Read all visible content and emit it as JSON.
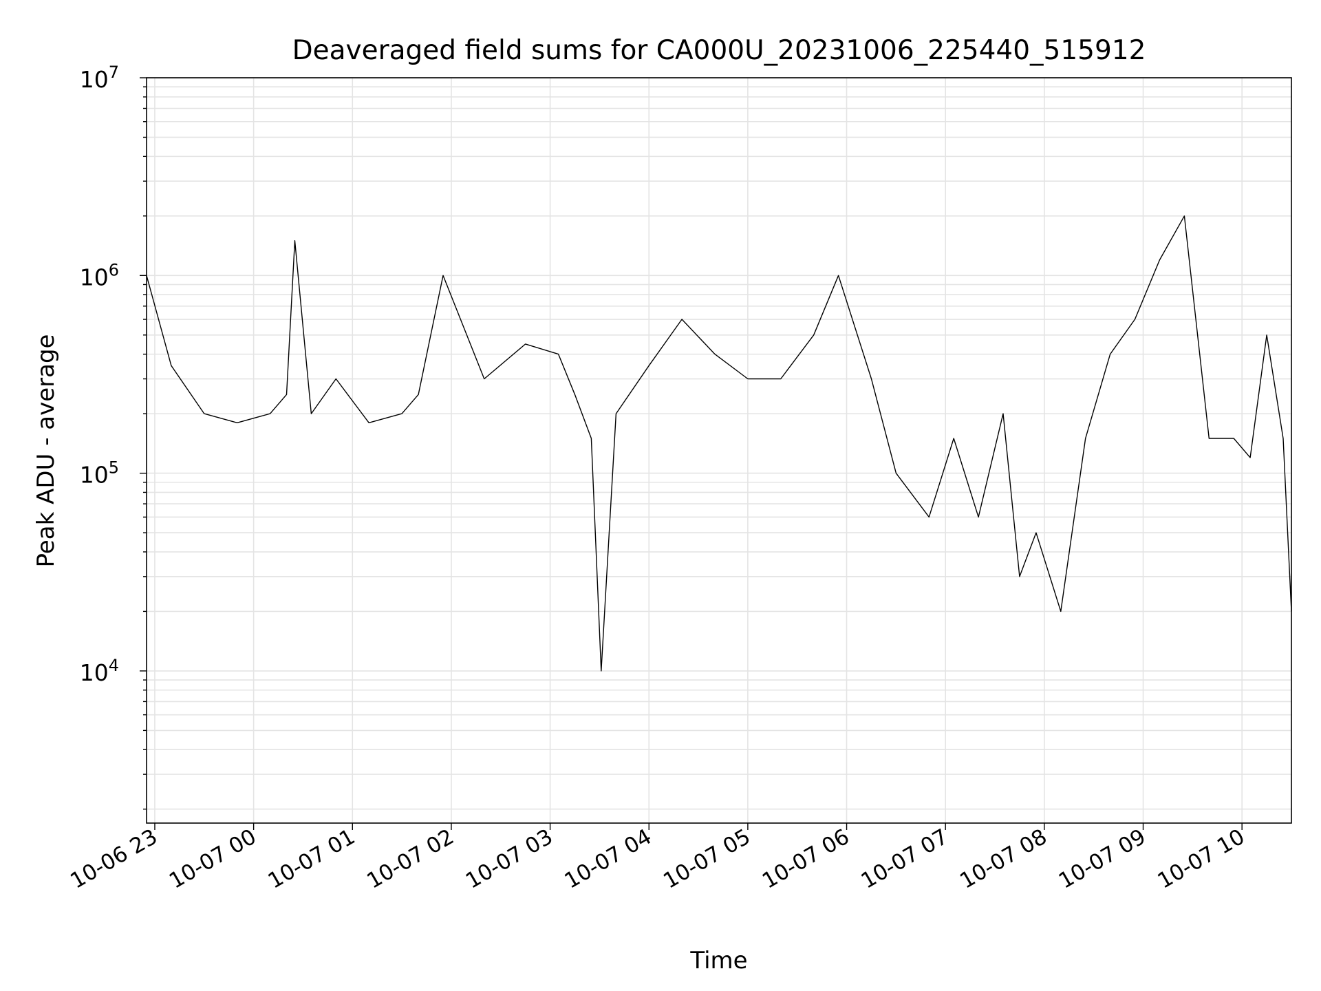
{
  "chart_data": {
    "type": "line",
    "title": "Deaveraged field sums for CA000U_20231006_225440_515912",
    "xlabel": "Time",
    "ylabel": "Peak ADU - average",
    "yscale": "log",
    "ylim": [
      1700,
      10000000
    ],
    "xlim": [
      "2023-10-06T22:55",
      "2023-10-07T10:30"
    ],
    "grid": true,
    "line_color": "#000000",
    "x_tick_labels": [
      "10-06 23",
      "10-07 00",
      "10-07 01",
      "10-07 02",
      "10-07 03",
      "10-07 04",
      "10-07 05",
      "10-07 06",
      "10-07 07",
      "10-07 08",
      "10-07 09",
      "10-07 10"
    ],
    "x_tick_times": [
      "2023-10-06T23:00",
      "2023-10-07T00:00",
      "2023-10-07T01:00",
      "2023-10-07T02:00",
      "2023-10-07T03:00",
      "2023-10-07T04:00",
      "2023-10-07T05:00",
      "2023-10-07T06:00",
      "2023-10-07T07:00",
      "2023-10-07T08:00",
      "2023-10-07T09:00",
      "2023-10-07T10:00"
    ],
    "y_tick_exponents": [
      4,
      5,
      6,
      7
    ],
    "series": [
      {
        "x": [
          "2023-10-06T22:55",
          "2023-10-06T23:10",
          "2023-10-06T23:30",
          "2023-10-06T23:50",
          "2023-10-07T00:10",
          "2023-10-07T00:20",
          "2023-10-07T00:25",
          "2023-10-07T00:35",
          "2023-10-07T00:50",
          "2023-10-07T01:10",
          "2023-10-07T01:30",
          "2023-10-07T01:40",
          "2023-10-07T01:55",
          "2023-10-07T02:20",
          "2023-10-07T02:45",
          "2023-10-07T03:05",
          "2023-10-07T03:15",
          "2023-10-07T03:25",
          "2023-10-07T03:31",
          "2023-10-07T03:40",
          "2023-10-07T04:00",
          "2023-10-07T04:20",
          "2023-10-07T04:40",
          "2023-10-07T05:00",
          "2023-10-07T05:20",
          "2023-10-07T05:40",
          "2023-10-07T05:55",
          "2023-10-07T06:15",
          "2023-10-07T06:30",
          "2023-10-07T06:50",
          "2023-10-07T07:05",
          "2023-10-07T07:20",
          "2023-10-07T07:35",
          "2023-10-07T07:45",
          "2023-10-07T07:55",
          "2023-10-07T08:10",
          "2023-10-07T08:25",
          "2023-10-07T08:40",
          "2023-10-07T08:55",
          "2023-10-07T09:10",
          "2023-10-07T09:25",
          "2023-10-07T09:40",
          "2023-10-07T09:55",
          "2023-10-07T10:05",
          "2023-10-07T10:15",
          "2023-10-07T10:25",
          "2023-10-07T10:30"
        ],
        "y": [
          1000000,
          350000,
          200000,
          180000,
          200000,
          250000,
          1500000,
          200000,
          300000,
          180000,
          200000,
          250000,
          1000000,
          300000,
          450000,
          400000,
          250000,
          150000,
          10000,
          200000,
          350000,
          600000,
          400000,
          300000,
          300000,
          500000,
          1000000,
          300000,
          100000,
          60000,
          150000,
          60000,
          200000,
          30000,
          50000,
          20000,
          150000,
          400000,
          600000,
          1200000,
          2000000,
          150000,
          150000,
          120000,
          500000,
          150000,
          20000
        ]
      }
    ]
  }
}
